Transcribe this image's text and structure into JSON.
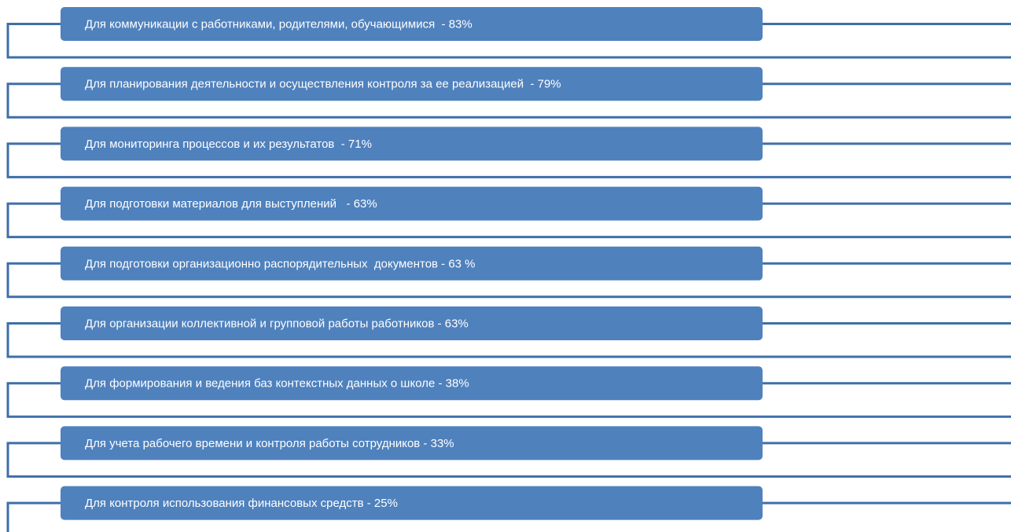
{
  "items": [
    "Для коммуникации с работниками, родителями, обучающимися  - 83%",
    "Для планирования деятельности и осуществления контроля за ее реализацией  - 79%",
    "Для мониторинга процессов и их результатов  - 71%",
    "Для подготовки материалов для выступлений   - 63%",
    "Для подготовки организационно распорядительных  документов - 63 %",
    "Для организации коллективной и групповой работы работников - 63%",
    "Для формирования и ведения баз контекстных данных о школе - 38%",
    "Для учета рабочего времени и контроля работы сотрудников - 33%",
    "Для контроля использования финансовых средств - 25%"
  ]
}
